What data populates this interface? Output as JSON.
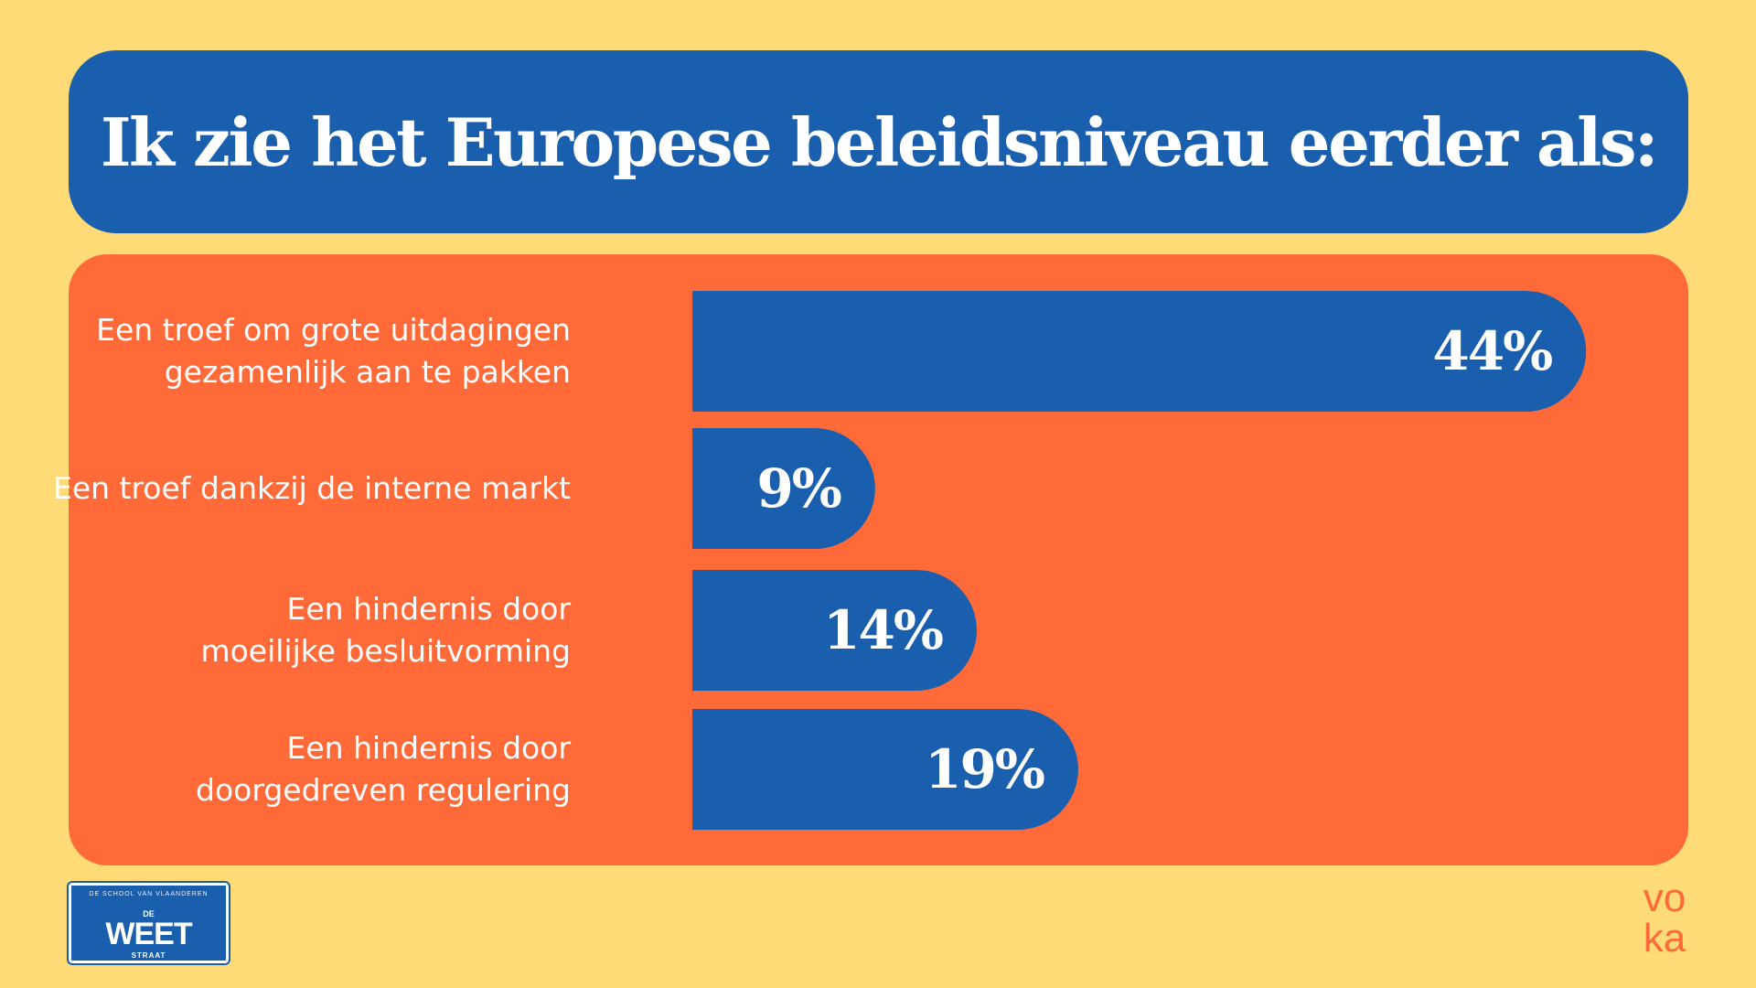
{
  "title": "Ik zie het Europese beleidsniveau eerder als:",
  "chart_data": {
    "type": "bar",
    "orientation": "horizontal",
    "title": "Ik zie het Europese beleidsniveau eerder als:",
    "categories": [
      "Een troef om grote uitdagingen\ngezamenlijk aan te pakken",
      "Een troef dankzij de interne markt",
      "Een hindernis door\nmoeilijke besluitvorming",
      "Een hindernis door\ndoorgedreven regulering"
    ],
    "values": [
      44,
      9,
      14,
      19
    ],
    "value_labels": [
      "44%",
      "9%",
      "14%",
      "19%"
    ],
    "unit": "%",
    "xlim": [
      0,
      50
    ],
    "grid": false,
    "legend": "none",
    "bar_color": "#1A5FAD",
    "label_color": "#ffffff"
  },
  "colors": {
    "background": "#FFDB77",
    "title_box": "#1A5FAD",
    "chart_box": "#FF6A38",
    "bar": "#1A5FAD",
    "text": "#ffffff"
  },
  "logos": {
    "left": {
      "small_text": "DE SCHOOL VAN VLAANDEREN",
      "de": "DE",
      "main": "WEET",
      "sub": "STRAAT"
    },
    "right": {
      "line1": "vo",
      "line2": "ka"
    }
  }
}
